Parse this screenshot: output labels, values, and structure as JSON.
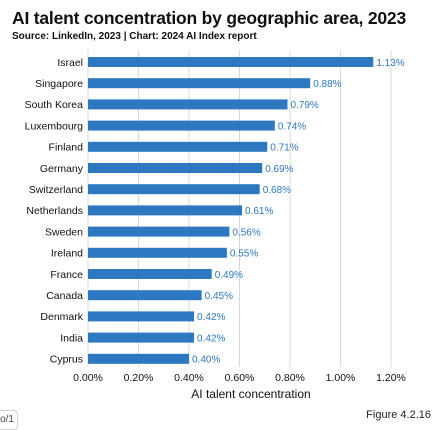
{
  "chart_data": {
    "type": "bar",
    "orientation": "horizontal",
    "title": "AI talent concentration by geographic area, 2023",
    "subtitle": "Source: LinkedIn, 2023 | Chart: 2024 AI Index report",
    "xlabel": "AI talent concentration",
    "ylabel": "",
    "categories": [
      "Israel",
      "Singapore",
      "South Korea",
      "Luxembourg",
      "Finland",
      "Germany",
      "Switzerland",
      "Netherlands",
      "Sweden",
      "Ireland",
      "France",
      "Canada",
      "Denmark",
      "India",
      "Cyprus"
    ],
    "values": [
      1.13,
      0.88,
      0.79,
      0.74,
      0.71,
      0.69,
      0.68,
      0.61,
      0.56,
      0.55,
      0.49,
      0.45,
      0.42,
      0.42,
      0.4
    ],
    "value_labels": [
      "1.13%",
      "0.88%",
      "0.79%",
      "0.74%",
      "0.71%",
      "0.69%",
      "0.68%",
      "0.61%",
      "0.56%",
      "0.55%",
      "0.49%",
      "0.45%",
      "0.42%",
      "0.42%",
      "0.40%"
    ],
    "xlim": [
      0,
      1.2
    ],
    "xticks": [
      0,
      0.2,
      0.4,
      0.6,
      0.8,
      1.0,
      1.2
    ],
    "xtick_labels": [
      "0.00%",
      "0.20%",
      "0.40%",
      "0.60%",
      "0.80%",
      "1.00%",
      "1.20%"
    ],
    "grid": "vertical",
    "bar_color": "#2d78c0",
    "label_color": "#2d78c0",
    "grid_color": "#d9d9d9"
  },
  "footer": {
    "page_tab": "o/1",
    "figure_label": "Figure 4.2.16"
  }
}
